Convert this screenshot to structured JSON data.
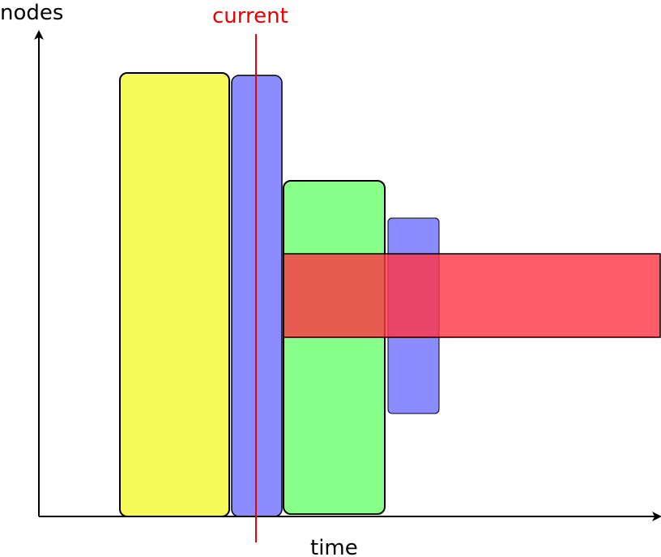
{
  "labels": {
    "y_axis": "nodes",
    "x_axis": "time",
    "marker": "current"
  },
  "colors": {
    "axis": "#000000",
    "marker": "#ee0000",
    "job_yellow": "#f7fb5a",
    "job_blue": "#8a8cff",
    "job_green": "#88ff88",
    "job_red": "#ff3344"
  },
  "blocks": [
    {
      "name": "job-yellow",
      "color_key": "job_yellow"
    },
    {
      "name": "job-blue-1",
      "color_key": "job_blue"
    },
    {
      "name": "job-green",
      "color_key": "job_green"
    },
    {
      "name": "job-blue-2",
      "color_key": "job_blue"
    },
    {
      "name": "reservation-red",
      "color_key": "job_red"
    }
  ]
}
